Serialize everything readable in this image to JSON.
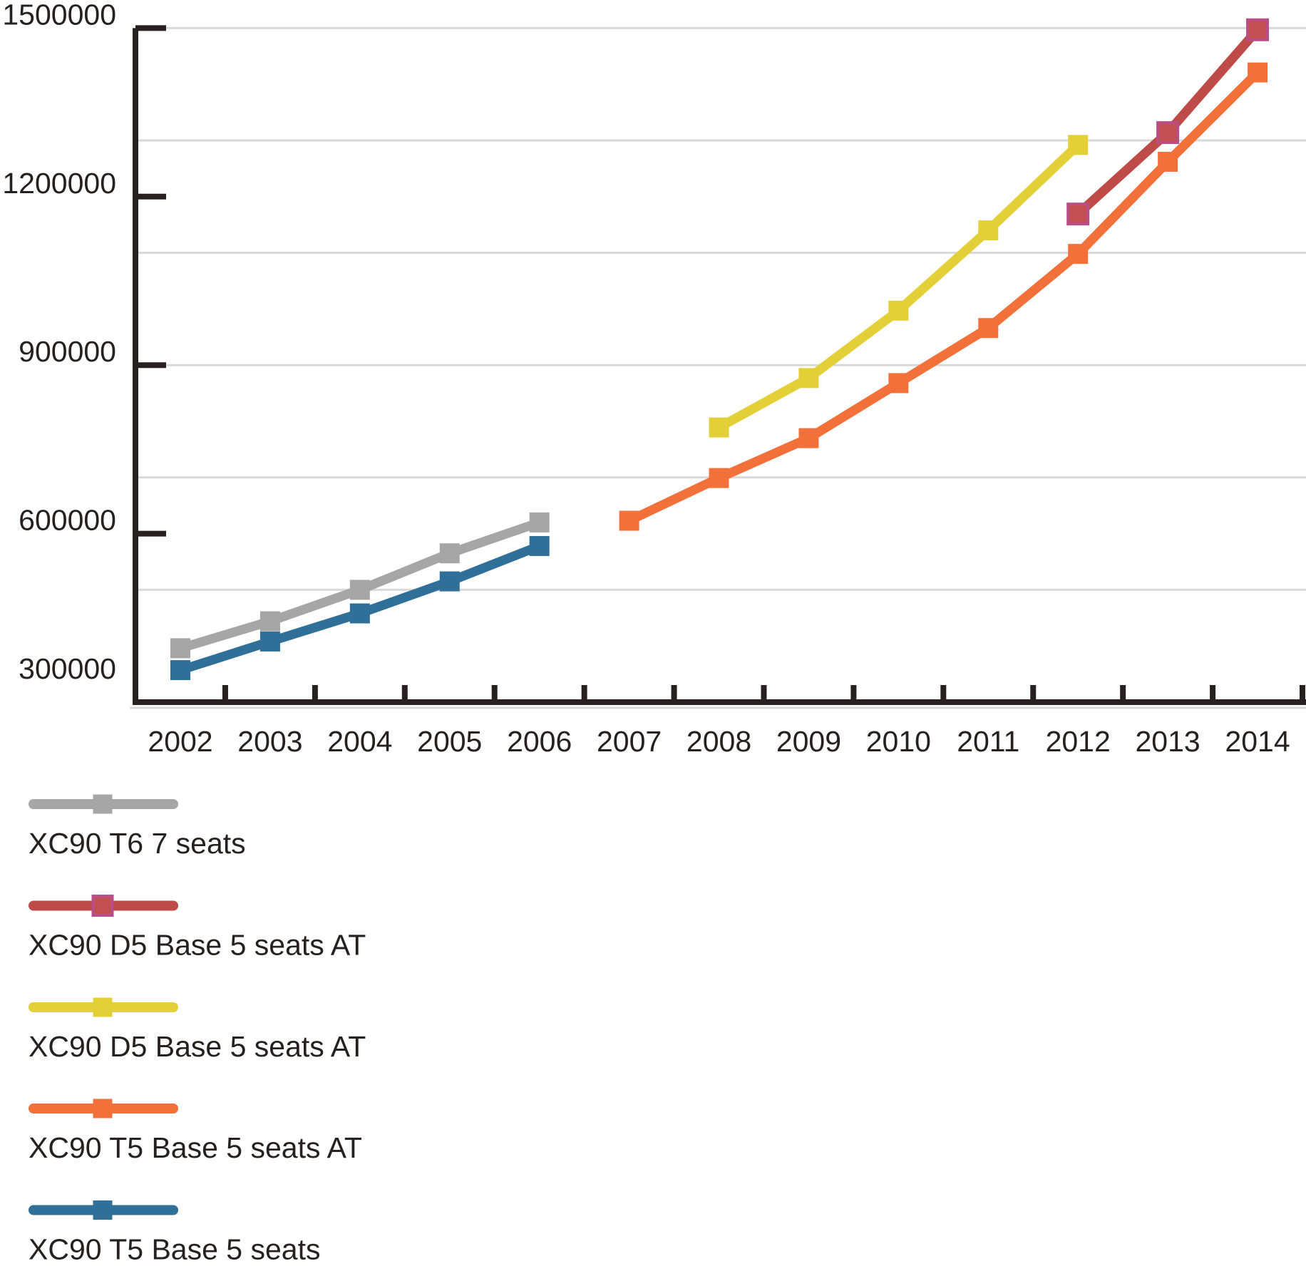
{
  "chart_data": {
    "type": "line",
    "title": "",
    "x_categories": [
      "2002",
      "2003",
      "2004",
      "2005",
      "2006",
      "2007",
      "2008",
      "2009",
      "2010",
      "2011",
      "2012",
      "2013",
      "2014"
    ],
    "y_axis": {
      "tick_labels": [
        "300000",
        "600000",
        "900000",
        "1200000",
        "1500000"
      ],
      "min": 300000,
      "max": 1500000,
      "gridline_values": [
        1500000,
        1300000,
        1100000,
        900000,
        700000,
        500000
      ],
      "grid_on": true
    },
    "series": [
      {
        "name": "XC90 T6 7 seats",
        "color": "#a6a6a6",
        "marker": "square",
        "data": {
          "2002": 396000,
          "2003": 444000,
          "2004": 500000,
          "2005": 565000,
          "2006": 620000
        }
      },
      {
        "name": "XC90 D5 Base 5 seats AT",
        "color": "#bf4b48",
        "marker": "square",
        "marker_fill": "#c34f52",
        "marker_border": "#b94d85",
        "data": {
          "2012": 1169000,
          "2013": 1314000,
          "2014": 1497000
        }
      },
      {
        "name": "XC90 D5 Base 5 seats AT",
        "color": "#e3d038",
        "marker": "square",
        "data": {
          "2008": 789000,
          "2009": 877000,
          "2010": 997000,
          "2011": 1140000,
          "2012": 1292000
        }
      },
      {
        "name": "XC90 T5 Base 5 seats AT",
        "color": "#f2713b",
        "marker": "square",
        "data": {
          "2007": 623000,
          "2008": 699000,
          "2009": 770000,
          "2010": 868000,
          "2011": 966000,
          "2012": 1098000,
          "2013": 1262000,
          "2014": 1421000
        }
      },
      {
        "name": "XC90 T5 Base 5 seats",
        "color": "#2f6f98",
        "marker": "square",
        "data": {
          "2002": 357000,
          "2003": 408000,
          "2004": 458000,
          "2005": 515000,
          "2006": 578000
        }
      }
    ],
    "legend": {
      "position": "bottom-left",
      "entries": [
        "XC90 T6 7 seats",
        "XC90 D5 Base 5 seats AT",
        "XC90 D5 Base 5 seats AT",
        "XC90 T5 Base 5 seats AT",
        "XC90 T5 Base 5 seats"
      ]
    },
    "colors": {
      "grid": "#d9d9d9",
      "axis": "#262120",
      "text": "#262120",
      "background": "#ffffff"
    }
  }
}
